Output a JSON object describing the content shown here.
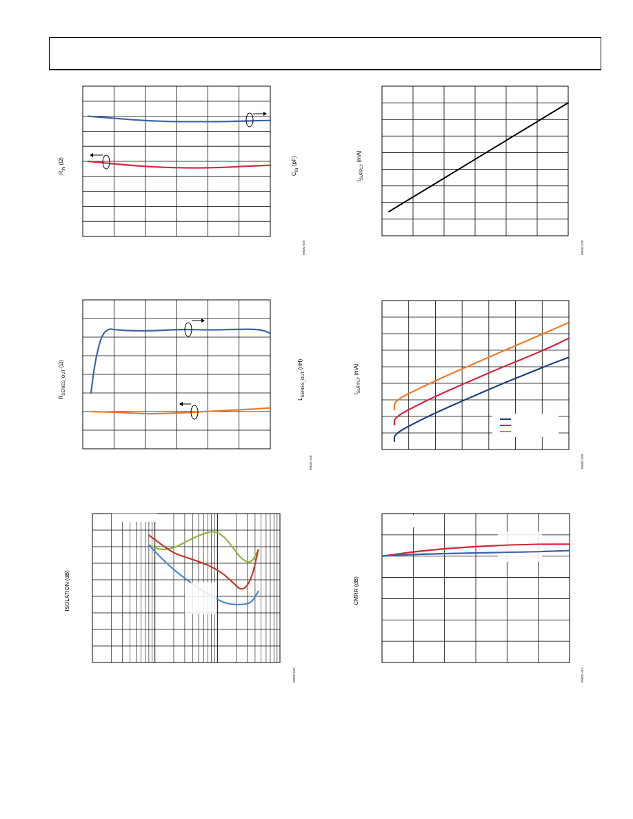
{
  "header": {},
  "chart_data": [
    {
      "id": "c1",
      "type": "line",
      "ylabel_left": {
        "main": "R",
        "sub": "IN",
        "tail": " (Ω)"
      },
      "ylabel_right": {
        "main": "C",
        "sub": "IN",
        "tail": " (pF)"
      },
      "figure_id": "09002-025",
      "xlim": [
        0,
        6
      ],
      "ylim": [
        0,
        10
      ],
      "x_divisions": 6,
      "y_divisions": 10,
      "series": [
        {
          "color": "#3b63a8",
          "axis": "right",
          "x": [
            0,
            0.5,
            1,
            1.5,
            2,
            2.5,
            3,
            3.5,
            4,
            4.5,
            5,
            5.5,
            6
          ],
          "y": [
            8.0,
            7.92,
            7.84,
            7.76,
            7.7,
            7.66,
            7.64,
            7.64,
            7.64,
            7.65,
            7.67,
            7.7,
            7.72
          ]
        },
        {
          "color": "#d7263d",
          "axis": "left",
          "x": [
            0,
            0.5,
            1,
            1.5,
            2,
            2.5,
            3,
            3.5,
            4,
            4.5,
            5,
            5.5,
            6
          ],
          "y": [
            5.0,
            4.9,
            4.8,
            4.72,
            4.65,
            4.6,
            4.57,
            4.56,
            4.57,
            4.6,
            4.65,
            4.7,
            4.74
          ]
        }
      ]
    },
    {
      "id": "c2",
      "type": "line",
      "ylabel_left": {
        "main": "I",
        "sub": "SUPPLY",
        "tail": " (mA)"
      },
      "figure_id": "09002-028",
      "xlim": [
        0,
        6
      ],
      "ylim": [
        0,
        9
      ],
      "x_divisions": 6,
      "y_divisions": 9,
      "series": [
        {
          "color": "#000000",
          "axis": "left",
          "x": [
            -0.8,
            6
          ],
          "y": [
            1.45,
            8.0
          ]
        }
      ]
    },
    {
      "id": "c3",
      "type": "line",
      "ylabel_left": {
        "main": "R",
        "sub": "SERIES_OUT",
        "tail": " (Ω)"
      },
      "ylabel_right": {
        "main": "L",
        "sub": "SERIES_OUT",
        "tail": " (nH)"
      },
      "figure_id": "09002-026",
      "xlim": [
        0,
        6
      ],
      "ylim": [
        0,
        8
      ],
      "x_divisions": 6,
      "y_divisions": 8,
      "series": [
        {
          "color": "#3b63a8",
          "axis": "right",
          "x": [
            0,
            0.1,
            0.25,
            0.4,
            0.6,
            0.8,
            1.2,
            2,
            3,
            4,
            5,
            5.5,
            5.8,
            6
          ],
          "y": [
            3.0,
            4.3,
            5.5,
            6.2,
            6.45,
            6.4,
            6.35,
            6.33,
            6.42,
            6.38,
            6.42,
            6.42,
            6.35,
            6.2
          ]
        },
        {
          "color": "#f07a22",
          "axis": "left",
          "x": [
            0,
            1,
            1.5,
            2,
            2.5,
            3,
            3.5,
            4,
            4.5,
            5,
            5.5,
            6
          ],
          "y": [
            2.0,
            1.95,
            1.9,
            1.88,
            1.9,
            1.93,
            1.97,
            2.02,
            2.06,
            2.1,
            2.14,
            2.2
          ]
        }
      ]
    },
    {
      "id": "c4",
      "type": "line",
      "ylabel_left": {
        "main": "I",
        "sub": "SUPPLY",
        "tail": " (mA)"
      },
      "figure_id": "09002-029",
      "xlim": [
        0,
        7
      ],
      "ylim": [
        0,
        9
      ],
      "x_divisions": 7,
      "y_divisions": 9,
      "legend": "bottom-right",
      "series": [
        {
          "color": "#1f3f7a",
          "axis": "left",
          "x": [
            -0.5,
            0,
            1,
            2,
            3,
            4,
            5,
            6,
            6.5
          ],
          "y": [
            0.5,
            0.95,
            1.8,
            2.55,
            3.25,
            3.95,
            4.6,
            5.25,
            5.55
          ]
        },
        {
          "color": "#d7263d",
          "axis": "left",
          "x": [
            -0.5,
            0,
            1,
            2,
            3,
            4,
            5,
            6,
            6.5
          ],
          "y": [
            1.5,
            1.95,
            2.8,
            3.55,
            4.25,
            4.95,
            5.6,
            6.3,
            6.7
          ]
        },
        {
          "color": "#f07a22",
          "axis": "left",
          "x": [
            -0.5,
            0,
            1,
            2,
            3,
            4,
            5,
            6,
            6.5
          ],
          "y": [
            2.4,
            2.95,
            3.75,
            4.5,
            5.2,
            5.9,
            6.6,
            7.3,
            7.65
          ]
        }
      ]
    },
    {
      "id": "c5",
      "type": "line",
      "ylabel_left": {
        "main": "ISOLATION (dB)",
        "sub": "",
        "tail": ""
      },
      "figure_id": "09002-027",
      "xscale": "log",
      "xlim": [
        1,
        1000
      ],
      "ylim": [
        0,
        9
      ],
      "y_divisions": 9,
      "series": [
        {
          "color": "#8db63c",
          "axis": "left",
          "x": [
            8,
            12,
            20,
            35,
            60,
            90,
            130,
            180,
            250,
            350,
            450
          ],
          "y": [
            7.1,
            6.8,
            6.9,
            7.4,
            7.8,
            7.95,
            7.6,
            6.9,
            6.2,
            6.0,
            6.8
          ]
        },
        {
          "color": "#c0392b",
          "axis": "left",
          "x": [
            8,
            12,
            20,
            35,
            60,
            90,
            130,
            180,
            250,
            350,
            450
          ],
          "y": [
            7.7,
            7.2,
            6.6,
            6.3,
            6.0,
            5.7,
            5.3,
            4.8,
            4.3,
            5.0,
            6.8
          ]
        },
        {
          "color": "#4a86c8",
          "axis": "left",
          "x": [
            8,
            12,
            20,
            35,
            60,
            90,
            130,
            180,
            250,
            350,
            450
          ],
          "y": [
            7.1,
            6.4,
            5.6,
            4.9,
            4.3,
            3.9,
            3.6,
            3.5,
            3.5,
            3.6,
            4.3
          ]
        }
      ]
    },
    {
      "id": "c6",
      "type": "line",
      "ylabel_left": {
        "main": "CMRR (dB)",
        "sub": "",
        "tail": ""
      },
      "figure_id": "09002-410",
      "xlim": [
        0,
        6
      ],
      "ylim": [
        0,
        7
      ],
      "x_divisions": 6,
      "y_divisions": 7,
      "series": [
        {
          "color": "#d7263d",
          "axis": "left",
          "x": [
            0,
            0.5,
            1,
            2,
            3,
            4,
            5,
            6
          ],
          "y": [
            5.0,
            5.1,
            5.2,
            5.35,
            5.45,
            5.52,
            5.56,
            5.56
          ]
        },
        {
          "color": "#3b63a8",
          "axis": "left",
          "x": [
            0,
            0.5,
            1,
            2,
            3,
            4,
            5,
            6
          ],
          "y": [
            5.0,
            5.05,
            5.08,
            5.12,
            5.15,
            5.18,
            5.21,
            5.26
          ]
        }
      ]
    }
  ]
}
